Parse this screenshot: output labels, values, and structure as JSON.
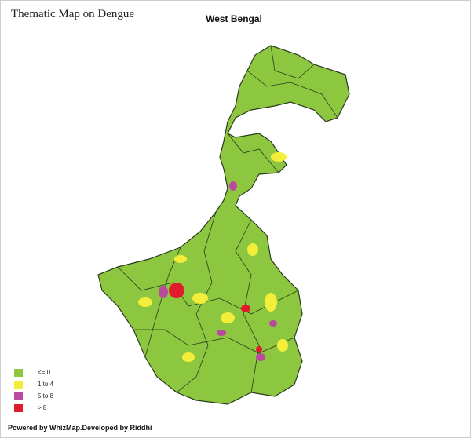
{
  "header": {
    "title": "Thematic Map on Dengue",
    "region": "West Bengal"
  },
  "legend": [
    {
      "label": "<= 0",
      "color": "#8dc63f"
    },
    {
      "label": "1 to 4",
      "color": "#f2ee3a"
    },
    {
      "label": "5 to 8",
      "color": "#b94aa0"
    },
    {
      "label": "> 8",
      "color": "#e01b2b"
    }
  ],
  "footer": "Powered by WhizMap.Developed by Riddhi"
}
